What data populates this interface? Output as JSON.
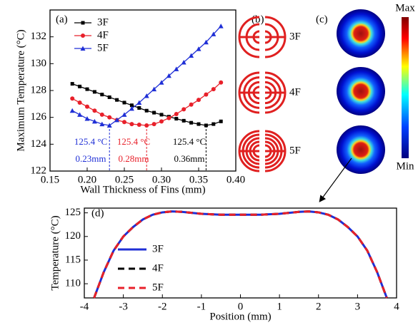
{
  "chart_data": [
    {
      "type": "line",
      "panel_label": "(a)",
      "x_label": "Wall Thickness of Fins (mm)",
      "y_label": "Maximum Temperature (°C)",
      "x": [
        0.18,
        0.19,
        0.2,
        0.21,
        0.22,
        0.23,
        0.24,
        0.25,
        0.26,
        0.27,
        0.28,
        0.29,
        0.3,
        0.31,
        0.32,
        0.33,
        0.34,
        0.35,
        0.36,
        0.37,
        0.38
      ],
      "series": [
        {
          "name": "3F",
          "color": "#000000",
          "marker": "square",
          "line_style": "solid",
          "values": [
            128.5,
            128.3,
            128.1,
            127.9,
            127.7,
            127.5,
            127.3,
            127.1,
            126.9,
            126.7,
            126.5,
            126.35,
            126.2,
            126.05,
            125.9,
            125.75,
            125.6,
            125.5,
            125.4,
            125.5,
            125.7
          ]
        },
        {
          "name": "4F",
          "color": "#e8202a",
          "marker": "circle",
          "line_style": "solid",
          "values": [
            127.4,
            127.1,
            126.8,
            126.5,
            126.2,
            126.0,
            125.8,
            125.65,
            125.5,
            125.45,
            125.4,
            125.5,
            125.7,
            125.95,
            126.25,
            126.6,
            126.95,
            127.3,
            127.7,
            128.1,
            128.6
          ]
        },
        {
          "name": "5F",
          "color": "#1f2fd6",
          "marker": "triangle",
          "line_style": "solid",
          "values": [
            126.5,
            126.2,
            125.9,
            125.7,
            125.5,
            125.4,
            125.8,
            126.2,
            126.65,
            127.1,
            127.6,
            128.1,
            128.6,
            129.1,
            129.6,
            130.1,
            130.6,
            131.1,
            131.6,
            132.2,
            132.8
          ]
        }
      ],
      "annotations": [
        {
          "temperature": "125.4 °C",
          "thickness": "0.23mm",
          "color": "#1f2fd6"
        },
        {
          "temperature": "125.4 °C",
          "thickness": "0.28mm",
          "color": "#e8202a"
        },
        {
          "temperature": "125.4 °C",
          "thickness": "0.36mm",
          "color": "#000000"
        }
      ],
      "xlim": [
        0.15,
        0.4
      ],
      "xticks": [
        0.15,
        {
          "value": 0.2,
          "label": "0.20"
        },
        0.25,
        {
          "value": 0.3,
          "label": "0.30"
        },
        0.35,
        {
          "value": 0.4,
          "label": "0.40"
        }
      ],
      "ylim": [
        122,
        134
      ],
      "yticks": [
        122,
        124,
        126,
        128,
        130,
        132
      ],
      "legend": "upper left"
    },
    {
      "type": "line",
      "panel_label": "(d)",
      "x_label": "Position (mm)",
      "y_label": "Temperature (°C)",
      "x": [
        -3.75,
        -3.5,
        -3.25,
        -3,
        -2.75,
        -2.5,
        -2.25,
        -2,
        -1.75,
        -1.5,
        -1,
        -0.5,
        0,
        0.5,
        1,
        1.5,
        1.75,
        2,
        2.25,
        2.5,
        2.75,
        3,
        3.25,
        3.5,
        3.75
      ],
      "series": [
        {
          "name": "3F",
          "color": "#1f2fd6",
          "line_style": "solid",
          "values": [
            107,
            112.5,
            117,
            120,
            122,
            123.6,
            124.6,
            125.1,
            125.3,
            125.2,
            124.8,
            124.6,
            124.6,
            124.6,
            124.8,
            125.2,
            125.3,
            125.1,
            124.6,
            123.6,
            122,
            120,
            117,
            112.5,
            107
          ]
        },
        {
          "name": "4F",
          "color": "#000000",
          "line_style": "dashed",
          "values": [
            107,
            112.5,
            117,
            120,
            122,
            123.6,
            124.6,
            125.1,
            125.3,
            125.2,
            124.8,
            124.6,
            124.6,
            124.6,
            124.8,
            125.2,
            125.3,
            125.1,
            124.6,
            123.6,
            122,
            120,
            117,
            112.5,
            107
          ]
        },
        {
          "name": "5F",
          "color": "#e8202a",
          "line_style": "dashed",
          "values": [
            107,
            112.5,
            117,
            120,
            122,
            123.6,
            124.6,
            125.1,
            125.3,
            125.2,
            124.8,
            124.6,
            124.6,
            124.6,
            124.8,
            125.2,
            125.3,
            125.1,
            124.6,
            123.6,
            122,
            120,
            117,
            112.5,
            107
          ]
        }
      ],
      "xlim": [
        -4,
        4
      ],
      "xticks": [
        -4,
        -3,
        -2,
        -1,
        0,
        1,
        2,
        3,
        4
      ],
      "ylim": [
        107,
        126
      ],
      "yticks": [
        110,
        115,
        120,
        125
      ],
      "legend": "lower left"
    }
  ],
  "panel_b": {
    "label": "(b)",
    "items": [
      "3F",
      "4F",
      "5F"
    ]
  },
  "panel_c": {
    "label": "(c)",
    "colorbar_max": "Max",
    "colorbar_min": "Min"
  }
}
